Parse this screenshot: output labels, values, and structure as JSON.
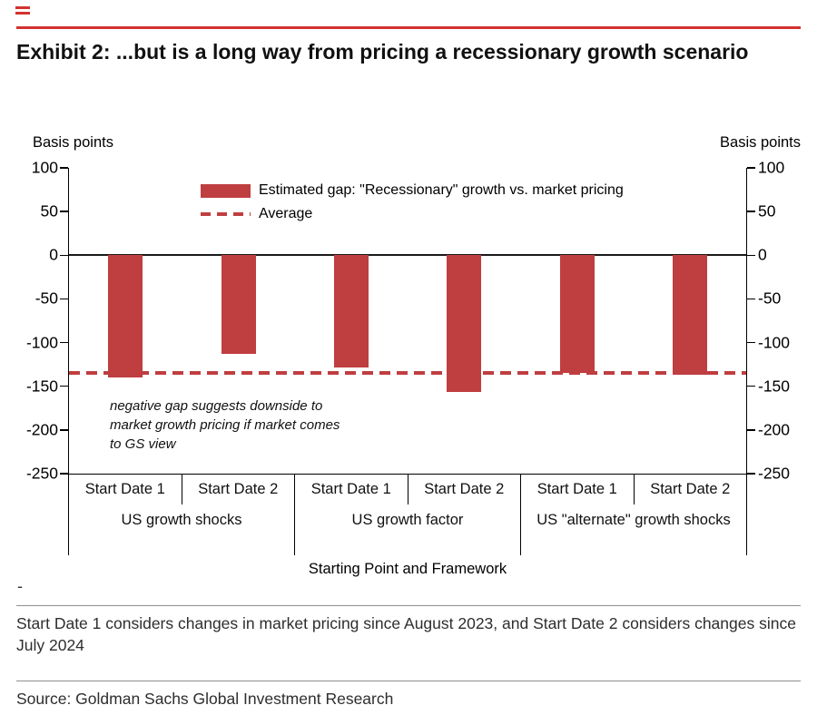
{
  "colors": {
    "rule_red": "#d23330",
    "bar_red": "#bf3e40",
    "divider_gray": "#8f8f8f"
  },
  "header": {
    "title": "Exhibit 2: ...but is a long way from pricing a recessionary growth scenario"
  },
  "chart_data": {
    "type": "bar",
    "title": "",
    "ylabel_left": "Basis points",
    "ylabel_right": "Basis points",
    "ylim": [
      -250,
      100
    ],
    "yticks": [
      100,
      50,
      0,
      -50,
      -100,
      -150,
      -200,
      -250
    ],
    "grid": "off",
    "legend_position": "top-inside",
    "categories": [
      "Start Date 1",
      "Start Date 2",
      "Start Date 1",
      "Start Date 2",
      "Start Date 1",
      "Start Date 2"
    ],
    "groups": [
      "US growth shocks",
      "US growth factor",
      "US \"alternate\" growth shocks"
    ],
    "values": [
      -140,
      -113,
      -128,
      -157,
      -135,
      -137
    ],
    "average": -135,
    "legend": [
      {
        "type": "bar",
        "label": "Estimated gap: \"Recessionary\" growth vs. market pricing"
      },
      {
        "type": "dashed-line",
        "label": "Average"
      }
    ],
    "annotation": "negative gap suggests downside to\nmarket growth pricing if market comes\nto GS view",
    "xlabel": "Starting Point and Framework"
  },
  "footer": {
    "dash_mark": "-",
    "footnote": "Start Date 1 considers changes in market pricing since August 2023, and Start Date 2 considers changes since July 2024",
    "source": "Source: Goldman Sachs Global Investment Research"
  }
}
